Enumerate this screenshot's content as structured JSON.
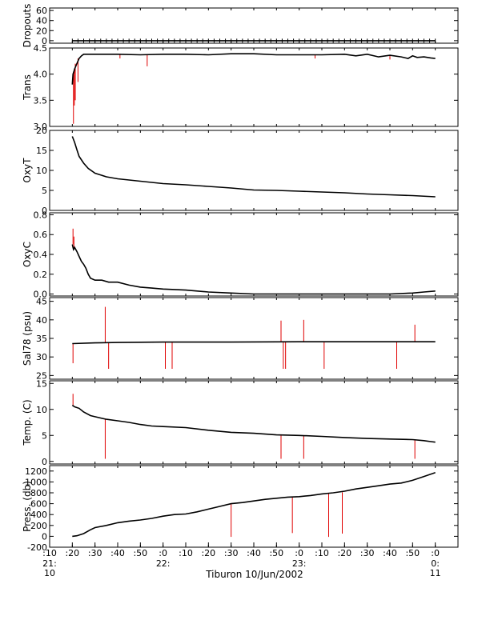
{
  "chart_data": {
    "type": "line",
    "caption": "Tiburon 10/Jun/2002",
    "x_axis": {
      "ticks": [
        ":10",
        ":20",
        ":30",
        ":40",
        ":50",
        ":0",
        ":10",
        ":20",
        ":30",
        ":40",
        ":50",
        ":0",
        ":10",
        ":20",
        ":30",
        ":40",
        ":50",
        ":0"
      ],
      "tick_minutes": [
        10,
        20,
        30,
        40,
        50,
        60,
        70,
        80,
        90,
        100,
        110,
        120,
        130,
        140,
        150,
        160,
        170,
        180
      ],
      "range_minutes_after_21_00": [
        10,
        190
      ],
      "hour_labels": [
        {
          "minute": 10,
          "lines": [
            "21:",
            "10"
          ]
        },
        {
          "minute": 60,
          "lines": [
            "22:",
            ""
          ]
        },
        {
          "minute": 120,
          "lines": [
            "23:",
            ""
          ]
        },
        {
          "minute": 180,
          "lines": [
            "0:",
            "11"
          ]
        }
      ]
    },
    "panels": [
      {
        "name": "dropouts",
        "ylabel": "Dropouts",
        "ylim": [
          -5,
          65
        ],
        "yticks": [
          0,
          20,
          40,
          60
        ],
        "series": [
          {
            "x": [
              20,
              180
            ],
            "y": [
              0,
              0
            ]
          }
        ],
        "spikes": []
      },
      {
        "name": "trans",
        "ylabel": "Trans",
        "ylim": [
          3.0,
          4.5
        ],
        "yticks": [
          "3.0",
          "3.5",
          "4.0",
          "4.5"
        ],
        "series": [
          {
            "x": [
              20,
              20.3,
              20.7,
              21,
              21.5,
              22,
              23,
              24,
              25,
              30,
              40,
              50,
              60,
              70,
              80,
              90,
              100,
              110,
              120,
              130,
              140,
              145,
              150,
              155,
              160,
              165,
              168,
              170,
              172,
              175,
              178,
              180
            ],
            "y": [
              3.8,
              4.0,
              4.05,
              4.1,
              4.15,
              4.2,
              4.3,
              4.35,
              4.38,
              4.38,
              4.38,
              4.37,
              4.38,
              4.38,
              4.37,
              4.39,
              4.39,
              4.37,
              4.37,
              4.37,
              4.38,
              4.35,
              4.38,
              4.33,
              4.36,
              4.33,
              4.3,
              4.35,
              4.32,
              4.33,
              4.31,
              4.3
            ]
          }
        ],
        "spikes": [
          {
            "x": 20.5,
            "from": 4.0,
            "to": 3.05
          },
          {
            "x": 20.9,
            "from": 4.1,
            "to": 3.4
          },
          {
            "x": 21.3,
            "from": 4.2,
            "to": 3.5
          },
          {
            "x": 22.5,
            "from": 4.3,
            "to": 3.85
          },
          {
            "x": 41,
            "from": 4.38,
            "to": 4.3
          },
          {
            "x": 53,
            "from": 4.37,
            "to": 4.15
          },
          {
            "x": 127,
            "from": 4.37,
            "to": 4.3
          },
          {
            "x": 160,
            "from": 4.36,
            "to": 4.28
          }
        ]
      },
      {
        "name": "oxyt",
        "ylabel": "OxyT",
        "ylim": [
          0,
          20
        ],
        "yticks": [
          0,
          5,
          10,
          15,
          20
        ],
        "series": [
          {
            "x": [
              20,
              21,
              22,
              23,
              25,
              27,
              30,
              35,
              40,
              45,
              50,
              55,
              60,
              70,
              80,
              90,
              100,
              110,
              120,
              130,
              140,
              150,
              160,
              170,
              180
            ],
            "y": [
              18.5,
              17,
              15.2,
              13.5,
              11.8,
              10.5,
              9.3,
              8.4,
              7.9,
              7.6,
              7.3,
              7.0,
              6.7,
              6.4,
              6.0,
              5.6,
              5.1,
              5.0,
              4.8,
              4.6,
              4.4,
              4.1,
              3.9,
              3.7,
              3.4
            ]
          }
        ],
        "spikes": []
      },
      {
        "name": "oxyc",
        "ylabel": "OxyC",
        "ylim": [
          -0.02,
          0.82
        ],
        "yticks": [
          "0.0",
          "0.2",
          "0.4",
          "0.6",
          "0.8"
        ],
        "series": [
          {
            "x": [
              20,
              20.5,
              21,
              22,
              23,
              24,
              25,
              26,
              27,
              28,
              30,
              33,
              36,
              40,
              45,
              50,
              55,
              60,
              70,
              80,
              90,
              100,
              110,
              120,
              130,
              140,
              150,
              160,
              170,
              175,
              180
            ],
            "y": [
              0.5,
              0.45,
              0.47,
              0.43,
              0.38,
              0.33,
              0.3,
              0.26,
              0.2,
              0.16,
              0.14,
              0.14,
              0.12,
              0.12,
              0.09,
              0.07,
              0.06,
              0.05,
              0.04,
              0.02,
              0.01,
              0.0,
              0.0,
              0.0,
              0.0,
              0.0,
              0.0,
              0.0,
              0.01,
              0.02,
              0.03
            ]
          }
        ],
        "spikes": [
          {
            "x": 20.3,
            "from": 0.5,
            "to": 0.66
          },
          {
            "x": 20.7,
            "from": 0.46,
            "to": 0.58
          }
        ]
      },
      {
        "name": "sal78",
        "ylabel": "Sal78 (psu)",
        "ylim": [
          24,
          46
        ],
        "yticks": [
          25,
          30,
          35,
          40,
          45
        ],
        "series": [
          {
            "x": [
              20,
              30,
              40,
              60,
              90,
              120,
              150,
              180
            ],
            "y": [
              33.6,
              33.8,
              33.9,
              34.0,
              34.0,
              34.1,
              34.1,
              34.1
            ]
          }
        ],
        "spikes": [
          {
            "x": 20.3,
            "from": 33.6,
            "to": 28.3
          },
          {
            "x": 34.5,
            "from": 33.9,
            "to": 43.5
          },
          {
            "x": 36,
            "from": 33.9,
            "to": 26.8
          },
          {
            "x": 61,
            "from": 34.0,
            "to": 26.8
          },
          {
            "x": 64,
            "from": 34.0,
            "to": 26.8
          },
          {
            "x": 112,
            "from": 34.0,
            "to": 39.8
          },
          {
            "x": 113,
            "from": 34.0,
            "to": 26.8
          },
          {
            "x": 114,
            "from": 34.0,
            "to": 26.8
          },
          {
            "x": 122,
            "from": 34.1,
            "to": 40.0
          },
          {
            "x": 131,
            "from": 34.1,
            "to": 26.8
          },
          {
            "x": 163,
            "from": 34.1,
            "to": 26.8
          },
          {
            "x": 171,
            "from": 34.1,
            "to": 38.7
          }
        ]
      },
      {
        "name": "temp",
        "ylabel": "Temp. (C)",
        "ylim": [
          -0.5,
          15.5
        ],
        "yticks": [
          0,
          5,
          10,
          15
        ],
        "series": [
          {
            "x": [
              20,
              21,
              23,
              25,
              28,
              30,
              35,
              40,
              45,
              50,
              55,
              60,
              70,
              80,
              90,
              100,
              110,
              120,
              130,
              140,
              150,
              160,
              170,
              175,
              178,
              180
            ],
            "y": [
              10.8,
              10.5,
              10.2,
              9.5,
              8.8,
              8.6,
              8.1,
              7.8,
              7.5,
              7.1,
              6.8,
              6.7,
              6.5,
              6.0,
              5.6,
              5.4,
              5.1,
              5.0,
              4.8,
              4.6,
              4.4,
              4.3,
              4.2,
              4.0,
              3.8,
              3.7
            ]
          }
        ],
        "spikes": [
          {
            "x": 20.3,
            "from": 10.8,
            "to": 13.0
          },
          {
            "x": 34.5,
            "from": 8.2,
            "to": 0.5
          },
          {
            "x": 112,
            "from": 5.1,
            "to": 0.5
          },
          {
            "x": 122,
            "from": 5.0,
            "to": 0.5
          },
          {
            "x": 171,
            "from": 4.1,
            "to": 0.5
          }
        ]
      },
      {
        "name": "press",
        "ylabel": "Press. (db)",
        "ylim": [
          -200,
          1300
        ],
        "yticks": [
          -200,
          0,
          200,
          400,
          600,
          800,
          1000,
          1200
        ],
        "series": [
          {
            "x": [
              20,
              22,
              25,
              28,
              30,
              35,
              40,
              45,
              50,
              55,
              60,
              65,
              70,
              75,
              80,
              85,
              90,
              95,
              100,
              105,
              110,
              115,
              120,
              125,
              130,
              135,
              140,
              145,
              150,
              155,
              160,
              165,
              170,
              175,
              180
            ],
            "y": [
              0,
              10,
              50,
              120,
              160,
              200,
              250,
              280,
              300,
              330,
              370,
              400,
              410,
              450,
              500,
              550,
              600,
              620,
              650,
              680,
              700,
              720,
              730,
              750,
              780,
              800,
              830,
              870,
              900,
              930,
              960,
              980,
              1030,
              1100,
              1170
            ]
          }
        ],
        "spikes": [
          {
            "x": 90,
            "from": 600,
            "to": -10
          },
          {
            "x": 117,
            "from": 720,
            "to": 60
          },
          {
            "x": 133,
            "from": 790,
            "to": -10
          },
          {
            "x": 139,
            "from": 810,
            "to": 50
          }
        ]
      }
    ]
  }
}
